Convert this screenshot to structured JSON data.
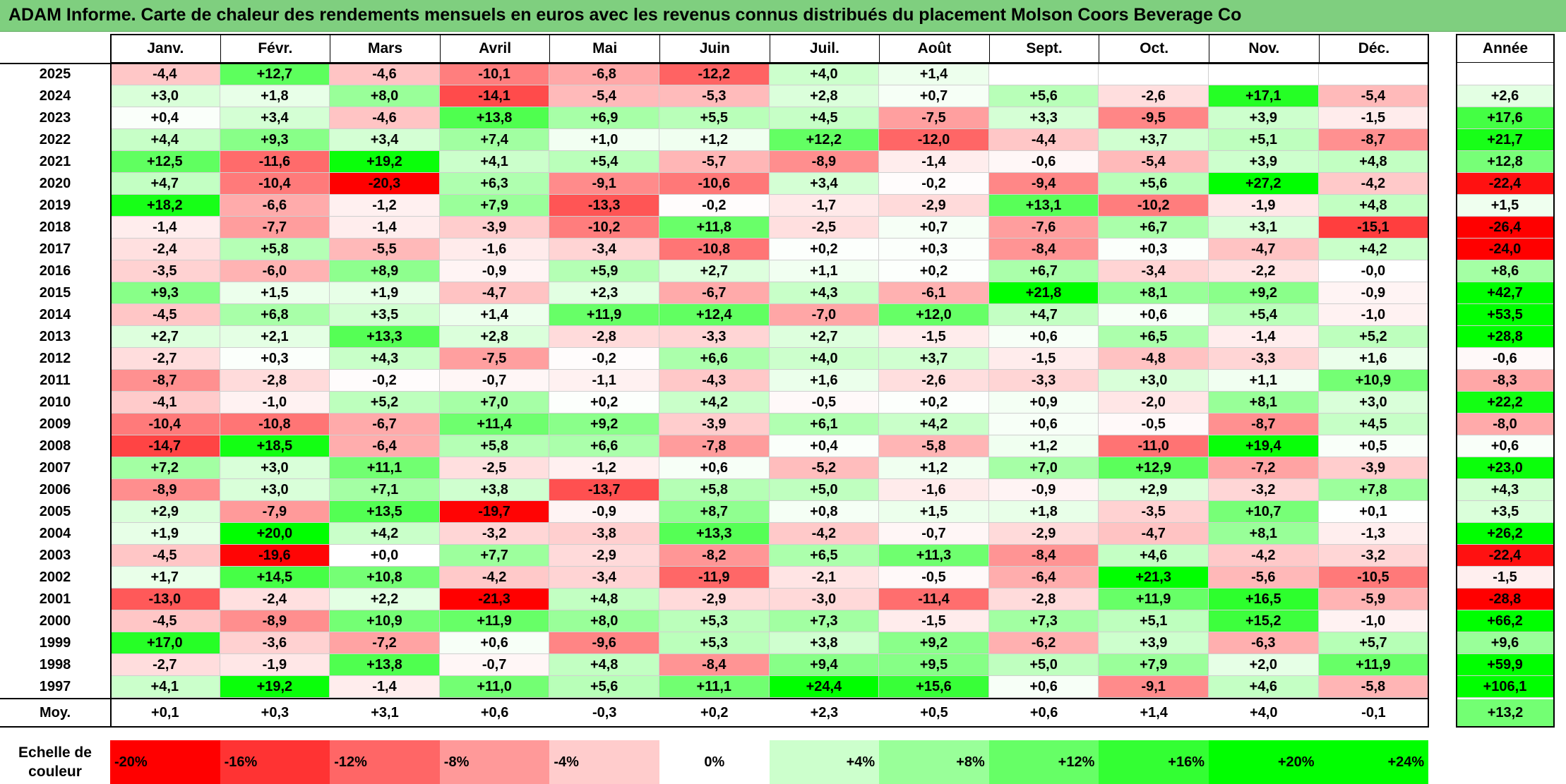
{
  "title": "ADAM Informe. Carte de chaleur des rendements mensuels en euros avec les revenus connus distribués du placement Molson Coors Beverage Co",
  "chart_data": {
    "type": "heatmap",
    "months": [
      "Janv.",
      "Févr.",
      "Mars",
      "Avril",
      "Mai",
      "Juin",
      "Juil.",
      "Août",
      "Sept.",
      "Oct.",
      "Nov.",
      "Déc."
    ],
    "year_header": "Année",
    "rows": [
      {
        "year": "2025",
        "values": [
          "-4,4",
          "+12,7",
          "-4,6",
          "-10,1",
          "-6,8",
          "-12,2",
          "+4,0",
          "+1,4",
          "",
          "",
          "",
          ""
        ],
        "annual": ""
      },
      {
        "year": "2024",
        "values": [
          "+3,0",
          "+1,8",
          "+8,0",
          "-14,1",
          "-5,4",
          "-5,3",
          "+2,8",
          "+0,7",
          "+5,6",
          "-2,6",
          "+17,1",
          "-5,4"
        ],
        "annual": "+2,6"
      },
      {
        "year": "2023",
        "values": [
          "+0,4",
          "+3,4",
          "-4,6",
          "+13,8",
          "+6,9",
          "+5,5",
          "+4,5",
          "-7,5",
          "+3,3",
          "-9,5",
          "+3,9",
          "-1,5"
        ],
        "annual": "+17,6"
      },
      {
        "year": "2022",
        "values": [
          "+4,4",
          "+9,3",
          "+3,4",
          "+7,4",
          "+1,0",
          "+1,2",
          "+12,2",
          "-12,0",
          "-4,4",
          "+3,7",
          "+5,1",
          "-8,7"
        ],
        "annual": "+21,7"
      },
      {
        "year": "2021",
        "values": [
          "+12,5",
          "-11,6",
          "+19,2",
          "+4,1",
          "+5,4",
          "-5,7",
          "-8,9",
          "-1,4",
          "-0,6",
          "-5,4",
          "+3,9",
          "+4,8"
        ],
        "annual": "+12,8"
      },
      {
        "year": "2020",
        "values": [
          "+4,7",
          "-10,4",
          "-20,3",
          "+6,3",
          "-9,1",
          "-10,6",
          "+3,4",
          "-0,2",
          "-9,4",
          "+5,6",
          "+27,2",
          "-4,2"
        ],
        "annual": "-22,4"
      },
      {
        "year": "2019",
        "values": [
          "+18,2",
          "-6,6",
          "-1,2",
          "+7,9",
          "-13,3",
          "-0,2",
          "-1,7",
          "-2,9",
          "+13,1",
          "-10,2",
          "-1,9",
          "+4,8"
        ],
        "annual": "+1,5"
      },
      {
        "year": "2018",
        "values": [
          "-1,4",
          "-7,7",
          "-1,4",
          "-3,9",
          "-10,2",
          "+11,8",
          "-2,5",
          "+0,7",
          "-7,6",
          "+6,7",
          "+3,1",
          "-15,1"
        ],
        "annual": "-26,4"
      },
      {
        "year": "2017",
        "values": [
          "-2,4",
          "+5,8",
          "-5,5",
          "-1,6",
          "-3,4",
          "-10,8",
          "+0,2",
          "+0,3",
          "-8,4",
          "+0,3",
          "-4,7",
          "+4,2"
        ],
        "annual": "-24,0"
      },
      {
        "year": "2016",
        "values": [
          "-3,5",
          "-6,0",
          "+8,9",
          "-0,9",
          "+5,9",
          "+2,7",
          "+1,1",
          "+0,2",
          "+6,7",
          "-3,4",
          "-2,2",
          "-0,0"
        ],
        "annual": "+8,6"
      },
      {
        "year": "2015",
        "values": [
          "+9,3",
          "+1,5",
          "+1,9",
          "-4,7",
          "+2,3",
          "-6,7",
          "+4,3",
          "-6,1",
          "+21,8",
          "+8,1",
          "+9,2",
          "-0,9"
        ],
        "annual": "+42,7"
      },
      {
        "year": "2014",
        "values": [
          "-4,5",
          "+6,8",
          "+3,5",
          "+1,4",
          "+11,9",
          "+12,4",
          "-7,0",
          "+12,0",
          "+4,7",
          "+0,6",
          "+5,4",
          "-1,0"
        ],
        "annual": "+53,5"
      },
      {
        "year": "2013",
        "values": [
          "+2,7",
          "+2,1",
          "+13,3",
          "+2,8",
          "-2,8",
          "-3,3",
          "+2,7",
          "-1,5",
          "+0,6",
          "+6,5",
          "-1,4",
          "+5,2"
        ],
        "annual": "+28,8"
      },
      {
        "year": "2012",
        "values": [
          "-2,7",
          "+0,3",
          "+4,3",
          "-7,5",
          "-0,2",
          "+6,6",
          "+4,0",
          "+3,7",
          "-1,5",
          "-4,8",
          "-3,3",
          "+1,6"
        ],
        "annual": "-0,6"
      },
      {
        "year": "2011",
        "values": [
          "-8,7",
          "-2,8",
          "-0,2",
          "-0,7",
          "-1,1",
          "-4,3",
          "+1,6",
          "-2,6",
          "-3,3",
          "+3,0",
          "+1,1",
          "+10,9"
        ],
        "annual": "-8,3"
      },
      {
        "year": "2010",
        "values": [
          "-4,1",
          "-1,0",
          "+5,2",
          "+7,0",
          "+0,2",
          "+4,2",
          "-0,5",
          "+0,2",
          "+0,9",
          "-2,0",
          "+8,1",
          "+3,0"
        ],
        "annual": "+22,2"
      },
      {
        "year": "2009",
        "values": [
          "-10,4",
          "-10,8",
          "-6,7",
          "+11,4",
          "+9,2",
          "-3,9",
          "+6,1",
          "+4,2",
          "+0,6",
          "-0,5",
          "-8,7",
          "+4,5"
        ],
        "annual": "-8,0"
      },
      {
        "year": "2008",
        "values": [
          "-14,7",
          "+18,5",
          "-6,4",
          "+5,8",
          "+6,6",
          "-7,8",
          "+0,4",
          "-5,8",
          "+1,2",
          "-11,0",
          "+19,4",
          "+0,5"
        ],
        "annual": "+0,6"
      },
      {
        "year": "2007",
        "values": [
          "+7,2",
          "+3,0",
          "+11,1",
          "-2,5",
          "-1,2",
          "+0,6",
          "-5,2",
          "+1,2",
          "+7,0",
          "+12,9",
          "-7,2",
          "-3,9"
        ],
        "annual": "+23,0"
      },
      {
        "year": "2006",
        "values": [
          "-8,9",
          "+3,0",
          "+7,1",
          "+3,8",
          "-13,7",
          "+5,8",
          "+5,0",
          "-1,6",
          "-0,9",
          "+2,9",
          "-3,2",
          "+7,8"
        ],
        "annual": "+4,3"
      },
      {
        "year": "2005",
        "values": [
          "+2,9",
          "-7,9",
          "+13,5",
          "-19,7",
          "-0,9",
          "+8,7",
          "+0,8",
          "+1,5",
          "+1,8",
          "-3,5",
          "+10,7",
          "+0,1"
        ],
        "annual": "+3,5"
      },
      {
        "year": "2004",
        "values": [
          "+1,9",
          "+20,0",
          "+4,2",
          "-3,2",
          "-3,8",
          "+13,3",
          "-4,2",
          "-0,7",
          "-2,9",
          "-4,7",
          "+8,1",
          "-1,3"
        ],
        "annual": "+26,2"
      },
      {
        "year": "2003",
        "values": [
          "-4,5",
          "-19,6",
          "+0,0",
          "+7,7",
          "-2,9",
          "-8,2",
          "+6,5",
          "+11,3",
          "-8,4",
          "+4,6",
          "-4,2",
          "-3,2"
        ],
        "annual": "-22,4"
      },
      {
        "year": "2002",
        "values": [
          "+1,7",
          "+14,5",
          "+10,8",
          "-4,2",
          "-3,4",
          "-11,9",
          "-2,1",
          "-0,5",
          "-6,4",
          "+21,3",
          "-5,6",
          "-10,5"
        ],
        "annual": "-1,5"
      },
      {
        "year": "2001",
        "values": [
          "-13,0",
          "-2,4",
          "+2,2",
          "-21,3",
          "+4,8",
          "-2,9",
          "-3,0",
          "-11,4",
          "-2,8",
          "+11,9",
          "+16,5",
          "-5,9"
        ],
        "annual": "-28,8"
      },
      {
        "year": "2000",
        "values": [
          "-4,5",
          "-8,9",
          "+10,9",
          "+11,9",
          "+8,0",
          "+5,3",
          "+7,3",
          "-1,5",
          "+7,3",
          "+5,1",
          "+15,2",
          "-1,0"
        ],
        "annual": "+66,2"
      },
      {
        "year": "1999",
        "values": [
          "+17,0",
          "-3,6",
          "-7,2",
          "+0,6",
          "-9,6",
          "+5,3",
          "+3,8",
          "+9,2",
          "-6,2",
          "+3,9",
          "-6,3",
          "+5,7"
        ],
        "annual": "+9,6"
      },
      {
        "year": "1998",
        "values": [
          "-2,7",
          "-1,9",
          "+13,8",
          "-0,7",
          "+4,8",
          "-8,4",
          "+9,4",
          "+9,5",
          "+5,0",
          "+7,9",
          "+2,0",
          "+11,9"
        ],
        "annual": "+59,9"
      },
      {
        "year": "1997",
        "values": [
          "+4,1",
          "+19,2",
          "-1,4",
          "+11,0",
          "+5,6",
          "+11,1",
          "+24,4",
          "+15,6",
          "+0,6",
          "-9,1",
          "+4,6",
          "-5,8"
        ],
        "annual": "+106,1"
      }
    ],
    "average_label": "Moy.",
    "averages": [
      "+0,1",
      "+0,3",
      "+3,1",
      "+0,6",
      "-0,3",
      "+0,2",
      "+2,3",
      "+0,5",
      "+0,6",
      "+1,4",
      "+4,0",
      "-0,1"
    ],
    "average_annual": "+13,2",
    "scale_title": "Echelle de couleur",
    "scale": [
      {
        "label": "-20%",
        "value": -20
      },
      {
        "label": "-16%",
        "value": -16
      },
      {
        "label": "-12%",
        "value": -12
      },
      {
        "label": "-8%",
        "value": -8
      },
      {
        "label": "-4%",
        "value": -4
      },
      {
        "label": "0%",
        "value": 0
      },
      {
        "label": "+4%",
        "value": 4
      },
      {
        "label": "+8%",
        "value": 8
      },
      {
        "label": "+12%",
        "value": 12
      },
      {
        "label": "+16%",
        "value": 16
      },
      {
        "label": "+20%",
        "value": 20
      },
      {
        "label": "+24%",
        "value": 24
      }
    ],
    "colors": {
      "negative": "#ff0000",
      "neutral": "#ffffff",
      "positive": "#00ff00",
      "title_bar": "#7fcf7f"
    }
  }
}
